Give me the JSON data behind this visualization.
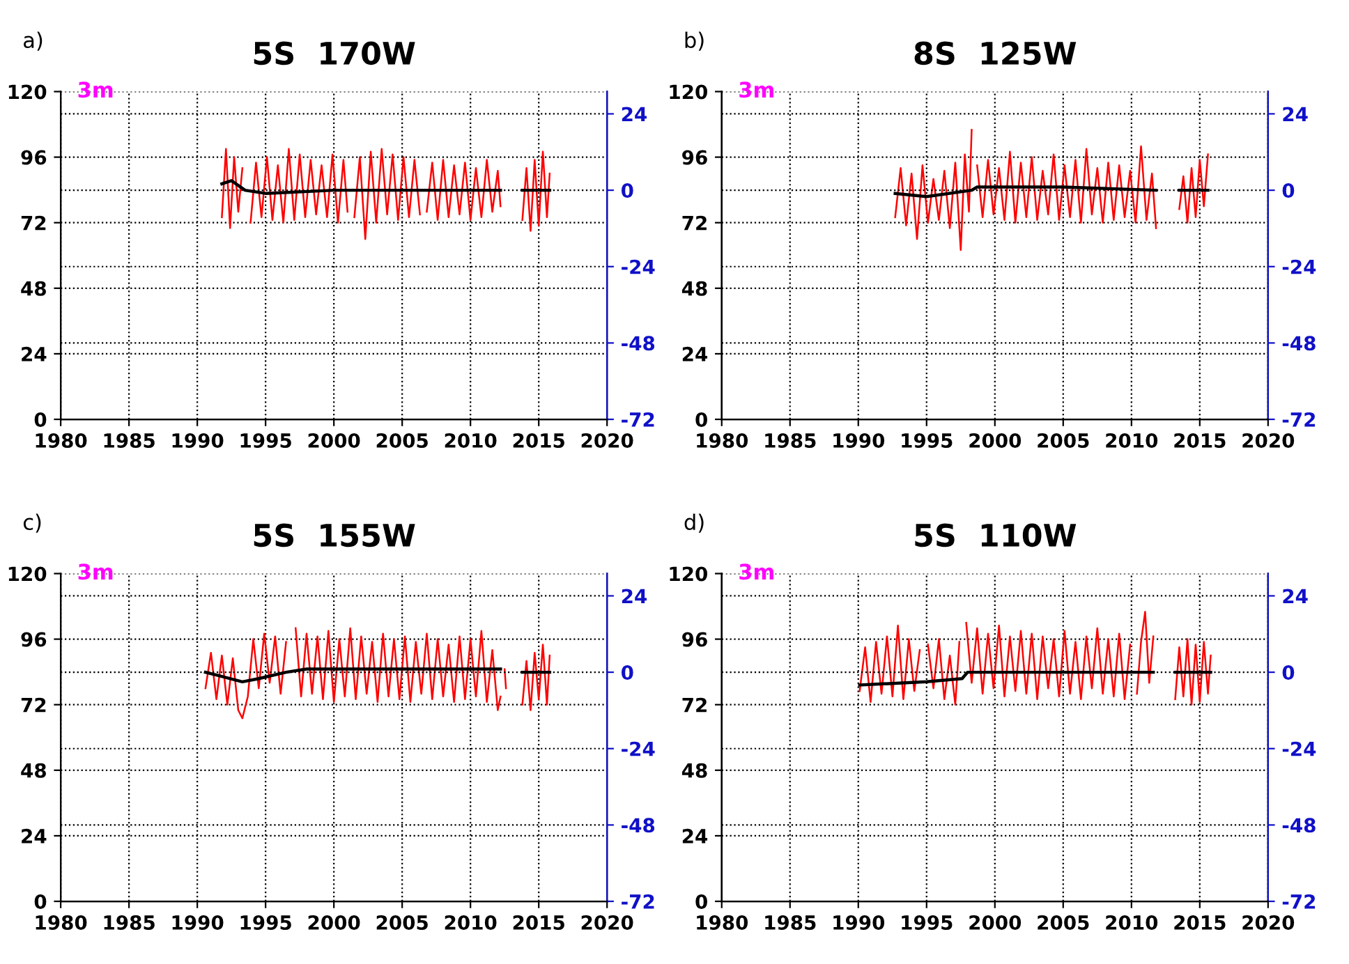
{
  "chart_data": [
    {
      "type": "line",
      "title": "5S  170W",
      "annotations": [
        "a)",
        "3m"
      ],
      "xlim": [
        1980,
        2020
      ],
      "xticks": [
        1980,
        1985,
        1990,
        1995,
        2000,
        2005,
        2010,
        2015,
        2020
      ],
      "ylim": [
        0,
        120
      ],
      "yticks": [
        0,
        24,
        48,
        72,
        96,
        120
      ],
      "y2lim": [
        -72,
        31
      ],
      "y2ticks": [
        -72,
        -48,
        -24,
        0,
        24
      ],
      "grid": true,
      "series": [
        {
          "color": "#ff0000",
          "x": [
            1991.8,
            1992.1,
            1992.4,
            1992.7,
            1993.0,
            1993.3,
            1993.6,
            1993.9,
            1994.3,
            1994.7,
            1995.1,
            1995.5,
            1995.9,
            1996.3,
            1996.7,
            1997.1,
            1997.5,
            1997.9,
            1998.3,
            1998.7,
            1999.1,
            1999.5,
            1999.9,
            2000.3,
            2000.7,
            2001.0,
            2001.2,
            2001.5,
            2001.9,
            2002.3,
            2002.7,
            2003.1,
            2003.5,
            2003.9,
            2004.3,
            2004.7,
            2005.1,
            2005.5,
            2005.9,
            2006.3,
            2006.6,
            2006.8,
            2007.2,
            2007.6,
            2008.0,
            2008.4,
            2008.8,
            2009.2,
            2009.6,
            2010.0,
            2010.4,
            2010.8,
            2011.2,
            2011.6,
            2012.0,
            2012.2,
            2013.0,
            2013.8,
            2014.1,
            2014.4,
            2014.7,
            2015.0,
            2015.3,
            2015.6,
            2015.8
          ],
          "values": [
            74,
            99,
            70,
            96,
            76,
            92,
            null,
            72,
            94,
            74,
            96,
            73,
            93,
            72,
            99,
            73,
            97,
            74,
            95,
            75,
            93,
            74,
            97,
            72,
            95,
            76,
            null,
            74,
            96,
            66,
            98,
            72,
            99,
            75,
            97,
            73,
            96,
            74,
            95,
            75,
            null,
            76,
            94,
            73,
            95,
            74,
            93,
            75,
            94,
            73,
            92,
            74,
            95,
            76,
            91,
            78,
            null,
            73,
            92,
            69,
            95,
            71,
            98,
            74,
            90
          ]
        },
        {
          "color": "#000000",
          "axis": "y2",
          "x": [
            1991.8,
            1992.5,
            1993.5,
            1995,
            2000,
            2005,
            2012.2,
            2013.0,
            2013.8,
            2015.8
          ],
          "values": [
            2,
            3,
            0,
            -1,
            0,
            0,
            0,
            null,
            0,
            0
          ]
        }
      ]
    },
    {
      "type": "line",
      "title": "8S  125W",
      "annotations": [
        "b)",
        "3m"
      ],
      "xlim": [
        1980,
        2020
      ],
      "xticks": [
        1980,
        1985,
        1990,
        1995,
        2000,
        2005,
        2010,
        2015,
        2020
      ],
      "ylim": [
        0,
        120
      ],
      "yticks": [
        0,
        24,
        48,
        72,
        96,
        120
      ],
      "y2lim": [
        -72,
        31
      ],
      "y2ticks": [
        -72,
        -48,
        -24,
        0,
        24
      ],
      "grid": true,
      "series": [
        {
          "color": "#ff0000",
          "x": [
            1992.7,
            1993.1,
            1993.5,
            1993.9,
            1994.3,
            1994.7,
            1995.1,
            1995.5,
            1995.9,
            1996.3,
            1996.7,
            1997.1,
            1997.5,
            1997.8,
            1998.1,
            1998.3,
            1998.5,
            1998.7,
            1999.1,
            1999.5,
            1999.9,
            2000.3,
            2000.7,
            2001.1,
            2001.5,
            2001.9,
            2002.3,
            2002.7,
            2003.1,
            2003.5,
            2003.9,
            2004.3,
            2004.7,
            2005.1,
            2005.5,
            2005.9,
            2006.3,
            2006.7,
            2007.1,
            2007.5,
            2007.9,
            2008.3,
            2008.7,
            2009.1,
            2009.5,
            2009.9,
            2010.3,
            2010.7,
            2011.1,
            2011.5,
            2011.8,
            2012.6,
            2013.5,
            2013.8,
            2014.1,
            2014.4,
            2014.7,
            2015.0,
            2015.3,
            2015.6
          ],
          "values": [
            74,
            92,
            71,
            90,
            66,
            93,
            72,
            88,
            73,
            91,
            70,
            94,
            62,
            97,
            76,
            106,
            null,
            93,
            74,
            95,
            75,
            92,
            73,
            98,
            72,
            94,
            74,
            96,
            73,
            91,
            75,
            97,
            73,
            93,
            74,
            95,
            72,
            99,
            75,
            92,
            72,
            94,
            73,
            93,
            74,
            91,
            72,
            100,
            73,
            90,
            70,
            null,
            77,
            89,
            72,
            92,
            74,
            95,
            78,
            97
          ]
        },
        {
          "color": "#000000",
          "axis": "y2",
          "x": [
            1992.7,
            1995,
            1998.3,
            1998.7,
            2005,
            2011.8,
            2012.6,
            2013.5,
            2015.6
          ],
          "values": [
            -1,
            -2,
            0,
            1,
            1,
            0,
            null,
            0,
            0
          ]
        }
      ]
    },
    {
      "type": "line",
      "title": "5S  155W",
      "annotations": [
        "c)",
        "3m"
      ],
      "xlim": [
        1980,
        2020
      ],
      "xticks": [
        1980,
        1985,
        1990,
        1995,
        2000,
        2005,
        2010,
        2015,
        2020
      ],
      "ylim": [
        0,
        120
      ],
      "yticks": [
        0,
        24,
        48,
        72,
        96,
        120
      ],
      "y2lim": [
        -72,
        31
      ],
      "y2ticks": [
        -72,
        -48,
        -24,
        0,
        24
      ],
      "grid": true,
      "series": [
        {
          "color": "#ff0000",
          "x": [
            1990.6,
            1991.0,
            1991.4,
            1991.8,
            1992.2,
            1992.6,
            1993.0,
            1993.3,
            1993.7,
            1994.1,
            1994.5,
            1994.9,
            1995.3,
            1995.7,
            1996.1,
            1996.5,
            1996.9,
            1997.2,
            1997.6,
            1998.0,
            1998.4,
            1998.8,
            1999.2,
            1999.6,
            2000.0,
            2000.4,
            2000.8,
            2001.2,
            2001.6,
            2002.0,
            2002.4,
            2002.8,
            2003.2,
            2003.6,
            2004.0,
            2004.4,
            2004.8,
            2005.2,
            2005.6,
            2006.0,
            2006.4,
            2006.8,
            2007.2,
            2007.6,
            2008.0,
            2008.4,
            2008.8,
            2009.2,
            2009.6,
            2010.0,
            2010.4,
            2010.8,
            2011.2,
            2011.6,
            2012.0,
            2012.2,
            2012.35,
            2012.5,
            2012.6,
            2013.2,
            2013.8,
            2014.1,
            2014.4,
            2014.7,
            2015.0,
            2015.3,
            2015.6,
            2015.8
          ],
          "values": [
            78,
            91,
            74,
            90,
            72,
            89,
            70,
            67,
            75,
            96,
            78,
            98,
            80,
            97,
            76,
            95,
            null,
            100,
            75,
            98,
            76,
            97,
            74,
            99,
            73,
            96,
            75,
            100,
            74,
            97,
            76,
            95,
            73,
            98,
            75,
            96,
            74,
            97,
            73,
            95,
            76,
            98,
            74,
            96,
            75,
            94,
            73,
            97,
            74,
            96,
            75,
            99,
            73,
            92,
            70,
            75,
            null,
            85,
            78,
            null,
            72,
            88,
            70,
            91,
            74,
            94,
            72,
            90
          ]
        },
        {
          "color": "#000000",
          "axis": "y2",
          "x": [
            1990.6,
            1991.5,
            1993.3,
            1994.5,
            1996.5,
            1998,
            2005,
            2012.2,
            2012.35,
            2013.8,
            2015.8
          ],
          "values": [
            0,
            -1,
            -3,
            -2,
            0,
            1,
            1,
            1,
            null,
            0,
            0
          ]
        }
      ]
    },
    {
      "type": "line",
      "title": "5S  110W",
      "annotations": [
        "d)",
        "3m"
      ],
      "xlim": [
        1980,
        2020
      ],
      "xticks": [
        1980,
        1985,
        1990,
        1995,
        2000,
        2005,
        2010,
        2015,
        2020
      ],
      "ylim": [
        0,
        120
      ],
      "yticks": [
        0,
        24,
        48,
        72,
        96,
        120
      ],
      "y2lim": [
        -72,
        31
      ],
      "y2ticks": [
        -72,
        -48,
        -24,
        0,
        24
      ],
      "grid": true,
      "series": [
        {
          "color": "#ff0000",
          "x": [
            1990.1,
            1990.5,
            1990.9,
            1991.3,
            1991.7,
            1992.1,
            1992.5,
            1992.9,
            1993.3,
            1993.7,
            1994.1,
            1994.5,
            1994.8,
            1995.1,
            1995.5,
            1995.9,
            1996.3,
            1996.7,
            1997.1,
            1997.4,
            1997.6,
            1997.9,
            1998.3,
            1998.7,
            1999.1,
            1999.5,
            1999.9,
            2000.3,
            2000.7,
            2001.1,
            2001.5,
            2001.9,
            2002.3,
            2002.7,
            2003.1,
            2003.5,
            2003.9,
            2004.3,
            2004.7,
            2005.1,
            2005.5,
            2005.9,
            2006.3,
            2006.7,
            2007.1,
            2007.5,
            2007.9,
            2008.3,
            2008.7,
            2009.1,
            2009.5,
            2009.9,
            2010.2,
            2010.4,
            2010.7,
            2011.0,
            2011.3,
            2011.6,
            2012.4,
            2013.2,
            2013.5,
            2013.8,
            2014.1,
            2014.4,
            2014.7,
            2015.0,
            2015.3,
            2015.6,
            2015.8
          ],
          "values": [
            77,
            93,
            73,
            95,
            76,
            97,
            75,
            101,
            74,
            96,
            77,
            92,
            null,
            94,
            78,
            96,
            74,
            90,
            72,
            95,
            null,
            102,
            80,
            100,
            76,
            98,
            78,
            101,
            75,
            97,
            77,
            99,
            76,
            98,
            74,
            97,
            78,
            96,
            75,
            99,
            76,
            95,
            74,
            97,
            78,
            100,
            76,
            96,
            75,
            98,
            74,
            94,
            null,
            76,
            95,
            106,
            80,
            97,
            null,
            74,
            93,
            75,
            96,
            72,
            94,
            73,
            95,
            76,
            90
          ]
        },
        {
          "color": "#000000",
          "axis": "y2",
          "x": [
            1990.1,
            1995,
            1997.6,
            1998,
            2005,
            2011.6,
            2012.4,
            2013.2,
            2015.8
          ],
          "values": [
            -4,
            -3,
            -2,
            0,
            0,
            0,
            null,
            0,
            0
          ]
        }
      ]
    }
  ]
}
